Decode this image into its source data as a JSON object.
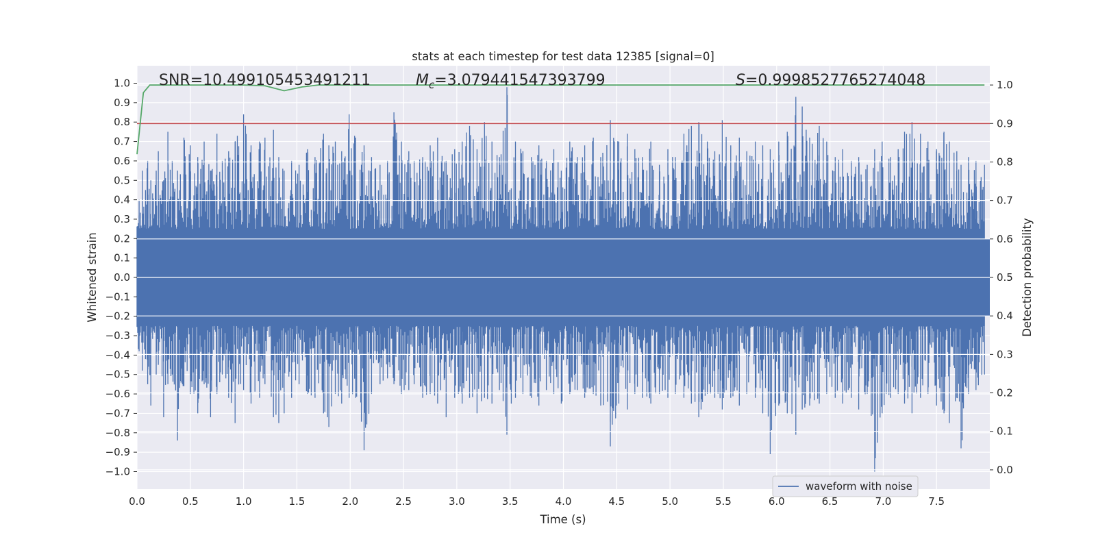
{
  "chart_data": {
    "type": "line",
    "title": "stats at each timestep for test data 12385 [signal=0]",
    "xlabel": "Time (s)",
    "ylabel": "Whitened strain",
    "y2label": "Detection probability",
    "xlim": [
      0.0,
      8.0
    ],
    "ylim": [
      -1.09,
      1.09
    ],
    "y2lim": [
      -0.05,
      1.05
    ],
    "xticks": [
      "0.0",
      "0.5",
      "1.0",
      "1.5",
      "2.0",
      "2.5",
      "3.0",
      "3.5",
      "4.0",
      "4.5",
      "5.0",
      "5.5",
      "6.0",
      "6.5",
      "7.0",
      "7.5"
    ],
    "yticks": [
      "1.0",
      "0.9",
      "0.8",
      "0.7",
      "0.6",
      "0.5",
      "0.4",
      "0.3",
      "0.2",
      "0.1",
      "0.0",
      "−0.1",
      "−0.2",
      "−0.3",
      "−0.4",
      "−0.5",
      "−0.6",
      "−0.7",
      "−0.8",
      "−0.9",
      "−1.0"
    ],
    "y2ticks": [
      "1.0",
      "0.9",
      "0.8",
      "0.7",
      "0.6",
      "0.5",
      "0.4",
      "0.3",
      "0.2",
      "0.1",
      "0.0"
    ],
    "annotations": {
      "snr": "SNR=10.499105453491211",
      "mc_symbol": "M",
      "mc_subscript": "c",
      "mc_value": "=3.079441547393799",
      "s_symbol": "S",
      "s_value": "=0.9998527765274048"
    },
    "threshold": 0.9,
    "series": [
      {
        "name": "waveform with noise",
        "color": "#4c72b0",
        "axis": "left",
        "envelope": [
          {
            "t": 0.02,
            "max": 0.4,
            "min": -0.38
          },
          {
            "t": 0.05,
            "max": 0.55,
            "min": -0.48
          },
          {
            "t": 0.08,
            "max": 0.45,
            "min": -0.42
          },
          {
            "t": 0.1,
            "max": 0.6,
            "min": -0.55
          },
          {
            "t": 0.13,
            "max": 0.5,
            "min": -0.66
          },
          {
            "t": 0.18,
            "max": 0.55,
            "min": -0.5
          },
          {
            "t": 0.2,
            "max": 0.65,
            "min": -0.45
          },
          {
            "t": 0.25,
            "max": 0.5,
            "min": -0.72
          },
          {
            "t": 0.29,
            "max": 0.75,
            "min": -0.55
          },
          {
            "t": 0.33,
            "max": 0.6,
            "min": -0.5
          },
          {
            "t": 0.38,
            "max": 0.55,
            "min": -0.84
          },
          {
            "t": 0.44,
            "max": 0.72,
            "min": -0.56
          },
          {
            "t": 0.5,
            "max": 0.68,
            "min": -0.6
          },
          {
            "t": 0.57,
            "max": 0.62,
            "min": -0.7
          },
          {
            "t": 0.63,
            "max": 0.7,
            "min": -0.55
          },
          {
            "t": 0.69,
            "max": 0.55,
            "min": -0.72
          },
          {
            "t": 0.75,
            "max": 0.74,
            "min": -0.6
          },
          {
            "t": 0.8,
            "max": 0.6,
            "min": -0.5
          },
          {
            "t": 0.86,
            "max": 0.65,
            "min": -0.62
          },
          {
            "t": 0.92,
            "max": 0.7,
            "min": -0.75
          },
          {
            "t": 1.0,
            "max": 0.84,
            "min": -0.58
          },
          {
            "t": 1.07,
            "max": 0.68,
            "min": -0.65
          },
          {
            "t": 1.15,
            "max": 0.7,
            "min": -0.62
          },
          {
            "t": 1.2,
            "max": 0.72,
            "min": -0.55
          },
          {
            "t": 1.28,
            "max": 0.76,
            "min": -0.72
          },
          {
            "t": 1.33,
            "max": 0.62,
            "min": -0.75
          },
          {
            "t": 1.38,
            "max": 0.55,
            "min": -0.7
          },
          {
            "t": 1.45,
            "max": 0.6,
            "min": -0.62
          },
          {
            "t": 1.52,
            "max": 0.58,
            "min": -0.55
          },
          {
            "t": 1.6,
            "max": 0.66,
            "min": -0.6
          },
          {
            "t": 1.67,
            "max": 0.62,
            "min": -0.62
          },
          {
            "t": 1.75,
            "max": 0.74,
            "min": -0.7
          },
          {
            "t": 1.8,
            "max": 0.68,
            "min": -0.77
          },
          {
            "t": 1.86,
            "max": 0.7,
            "min": -0.6
          },
          {
            "t": 1.92,
            "max": 0.65,
            "min": -0.65
          },
          {
            "t": 1.99,
            "max": 0.84,
            "min": -0.62
          },
          {
            "t": 2.05,
            "max": 0.72,
            "min": -0.62
          },
          {
            "t": 2.13,
            "max": 0.68,
            "min": -0.89
          },
          {
            "t": 2.2,
            "max": 0.62,
            "min": -0.6
          },
          {
            "t": 2.28,
            "max": 0.58,
            "min": -0.55
          },
          {
            "t": 2.35,
            "max": 0.6,
            "min": -0.52
          },
          {
            "t": 2.41,
            "max": 0.85,
            "min": -0.55
          },
          {
            "t": 2.48,
            "max": 0.7,
            "min": -0.6
          },
          {
            "t": 2.55,
            "max": 0.65,
            "min": -0.58
          },
          {
            "t": 2.6,
            "max": 0.6,
            "min": -0.55
          },
          {
            "t": 2.68,
            "max": 0.62,
            "min": -0.62
          },
          {
            "t": 2.75,
            "max": 0.68,
            "min": -0.6
          },
          {
            "t": 2.82,
            "max": 0.72,
            "min": -0.65
          },
          {
            "t": 2.9,
            "max": 0.6,
            "min": -0.72
          },
          {
            "t": 2.98,
            "max": 0.66,
            "min": -0.62
          },
          {
            "t": 3.05,
            "max": 0.7,
            "min": -0.65
          },
          {
            "t": 3.12,
            "max": 0.78,
            "min": -0.62
          },
          {
            "t": 3.19,
            "max": 0.66,
            "min": -0.7
          },
          {
            "t": 3.26,
            "max": 0.8,
            "min": -0.62
          },
          {
            "t": 3.33,
            "max": 0.7,
            "min": -0.65
          },
          {
            "t": 3.4,
            "max": 0.62,
            "min": -0.58
          },
          {
            "t": 3.47,
            "max": 0.98,
            "min": -0.81
          },
          {
            "t": 3.55,
            "max": 0.7,
            "min": -0.62
          },
          {
            "t": 3.62,
            "max": 0.65,
            "min": -0.6
          },
          {
            "t": 3.7,
            "max": 0.62,
            "min": -0.62
          },
          {
            "t": 3.77,
            "max": 0.68,
            "min": -0.66
          },
          {
            "t": 3.84,
            "max": 0.6,
            "min": -0.58
          },
          {
            "t": 3.91,
            "max": 0.66,
            "min": -0.6
          },
          {
            "t": 3.98,
            "max": 0.55,
            "min": -0.65
          },
          {
            "t": 4.06,
            "max": 0.7,
            "min": -0.6
          },
          {
            "t": 4.13,
            "max": 0.62,
            "min": -0.58
          },
          {
            "t": 4.2,
            "max": 0.68,
            "min": -0.62
          },
          {
            "t": 4.28,
            "max": 0.72,
            "min": -0.6
          },
          {
            "t": 4.35,
            "max": 0.62,
            "min": -0.66
          },
          {
            "t": 4.44,
            "max": 0.81,
            "min": -0.87
          },
          {
            "t": 4.52,
            "max": 0.7,
            "min": -0.65
          },
          {
            "t": 4.6,
            "max": 0.74,
            "min": -0.68
          },
          {
            "t": 4.67,
            "max": 0.66,
            "min": -0.6
          },
          {
            "t": 4.74,
            "max": 0.62,
            "min": -0.62
          },
          {
            "t": 4.82,
            "max": 0.7,
            "min": -0.65
          },
          {
            "t": 4.9,
            "max": 0.58,
            "min": -0.6
          },
          {
            "t": 4.98,
            "max": 0.66,
            "min": -0.62
          },
          {
            "t": 5.05,
            "max": 0.62,
            "min": -0.6
          },
          {
            "t": 5.13,
            "max": 0.74,
            "min": -0.62
          },
          {
            "t": 5.2,
            "max": 0.78,
            "min": -0.65
          },
          {
            "t": 5.27,
            "max": 0.8,
            "min": -0.72
          },
          {
            "t": 5.35,
            "max": 0.7,
            "min": -0.6
          },
          {
            "t": 5.42,
            "max": 0.65,
            "min": -0.62
          },
          {
            "t": 5.49,
            "max": 0.81,
            "min": -0.68
          },
          {
            "t": 5.57,
            "max": 0.68,
            "min": -0.62
          },
          {
            "t": 5.65,
            "max": 0.72,
            "min": -0.66
          },
          {
            "t": 5.72,
            "max": 0.65,
            "min": -0.6
          },
          {
            "t": 5.8,
            "max": 0.7,
            "min": -0.62
          },
          {
            "t": 5.87,
            "max": 0.68,
            "min": -0.7
          },
          {
            "t": 5.94,
            "max": 0.66,
            "min": -0.91
          },
          {
            "t": 6.02,
            "max": 0.7,
            "min": -0.66
          },
          {
            "t": 6.1,
            "max": 0.75,
            "min": -0.7
          },
          {
            "t": 6.18,
            "max": 0.93,
            "min": -0.81
          },
          {
            "t": 6.24,
            "max": 0.88,
            "min": -0.68
          },
          {
            "t": 6.31,
            "max": 0.72,
            "min": -0.66
          },
          {
            "t": 6.4,
            "max": 0.78,
            "min": -0.65
          },
          {
            "t": 6.47,
            "max": 0.7,
            "min": -0.6
          },
          {
            "t": 6.55,
            "max": 0.62,
            "min": -0.62
          },
          {
            "t": 6.62,
            "max": 0.66,
            "min": -0.65
          },
          {
            "t": 6.7,
            "max": 0.6,
            "min": -0.62
          },
          {
            "t": 6.77,
            "max": 0.62,
            "min": -0.68
          },
          {
            "t": 6.85,
            "max": 0.58,
            "min": -0.6
          },
          {
            "t": 6.92,
            "max": 0.66,
            "min": -1.0
          },
          {
            "t": 6.99,
            "max": 0.7,
            "min": -0.7
          },
          {
            "t": 7.07,
            "max": 0.62,
            "min": -0.62
          },
          {
            "t": 7.14,
            "max": 0.66,
            "min": -0.6
          },
          {
            "t": 7.2,
            "max": 0.75,
            "min": -0.65
          },
          {
            "t": 7.27,
            "max": 0.8,
            "min": -0.7
          },
          {
            "t": 7.35,
            "max": 0.74,
            "min": -0.62
          },
          {
            "t": 7.42,
            "max": 0.7,
            "min": -0.6
          },
          {
            "t": 7.5,
            "max": 0.66,
            "min": -0.66
          },
          {
            "t": 7.57,
            "max": 0.75,
            "min": -0.7
          },
          {
            "t": 7.62,
            "max": 0.7,
            "min": -0.75
          },
          {
            "t": 7.69,
            "max": 0.65,
            "min": -0.62
          },
          {
            "t": 7.73,
            "max": 0.58,
            "min": -0.88
          },
          {
            "t": 7.8,
            "max": 0.62,
            "min": -0.6
          },
          {
            "t": 7.87,
            "max": 0.6,
            "min": -0.58
          },
          {
            "t": 7.95,
            "max": 0.58,
            "min": -0.5
          }
        ]
      },
      {
        "name": "detection probability",
        "color": "#55a868",
        "axis": "right",
        "x": [
          0.0,
          0.06,
          0.12,
          0.5,
          1.0,
          1.2,
          1.38,
          1.55,
          1.7,
          2.0,
          3.0,
          4.0,
          5.0,
          6.0,
          7.0,
          7.95
        ],
        "values": [
          0.82,
          0.98,
          1.0,
          1.0,
          1.0,
          0.998,
          0.985,
          0.995,
          1.0,
          1.0,
          1.0,
          1.0,
          1.0,
          1.0,
          1.0,
          1.0
        ]
      }
    ],
    "threshold_color": "#c44e52",
    "legend": {
      "position": "bottom-right",
      "entries": [
        "waveform with noise"
      ]
    }
  }
}
